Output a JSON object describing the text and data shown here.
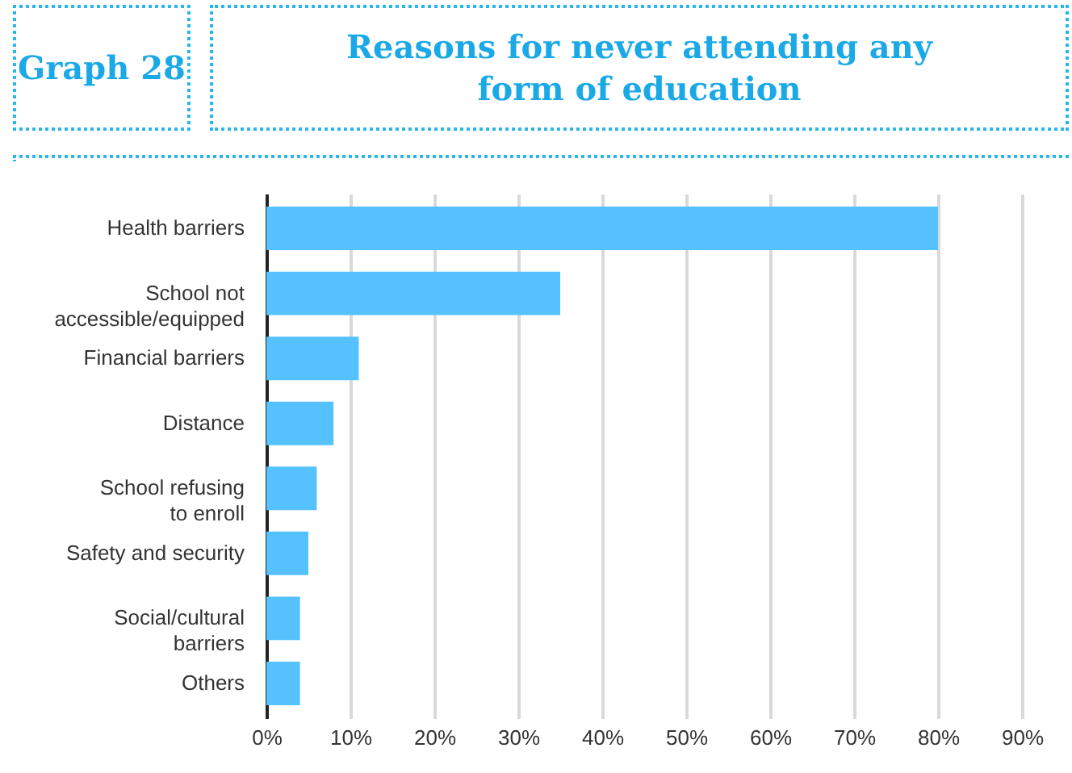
{
  "chart_data": {
    "type": "bar",
    "orientation": "horizontal",
    "title": "Reasons for never attending any form of education",
    "annotations": [
      "Graph 28"
    ],
    "categories": [
      "Health barriers",
      "School not accessible/equipped",
      "Financial barriers",
      "Distance",
      "School refusing to enroll",
      "Safety and security",
      "Social/cultural barriers",
      "Others"
    ],
    "values": [
      80,
      35,
      11,
      8,
      6,
      5,
      4,
      4
    ],
    "color": "#55c1ff",
    "xlim": [
      0,
      90
    ],
    "xticks": [
      {
        "value": 0,
        "label": "0%"
      },
      {
        "value": 10,
        "label": "10%"
      },
      {
        "value": 20,
        "label": "20%"
      },
      {
        "value": 30,
        "label": "30%"
      },
      {
        "value": 40,
        "label": "40%"
      },
      {
        "value": 50,
        "label": "50%"
      },
      {
        "value": 60,
        "label": "60%"
      },
      {
        "value": 70,
        "label": "70%"
      },
      {
        "value": 80,
        "label": "80%"
      },
      {
        "value": 90,
        "label": "90%"
      }
    ],
    "grid": "x"
  }
}
